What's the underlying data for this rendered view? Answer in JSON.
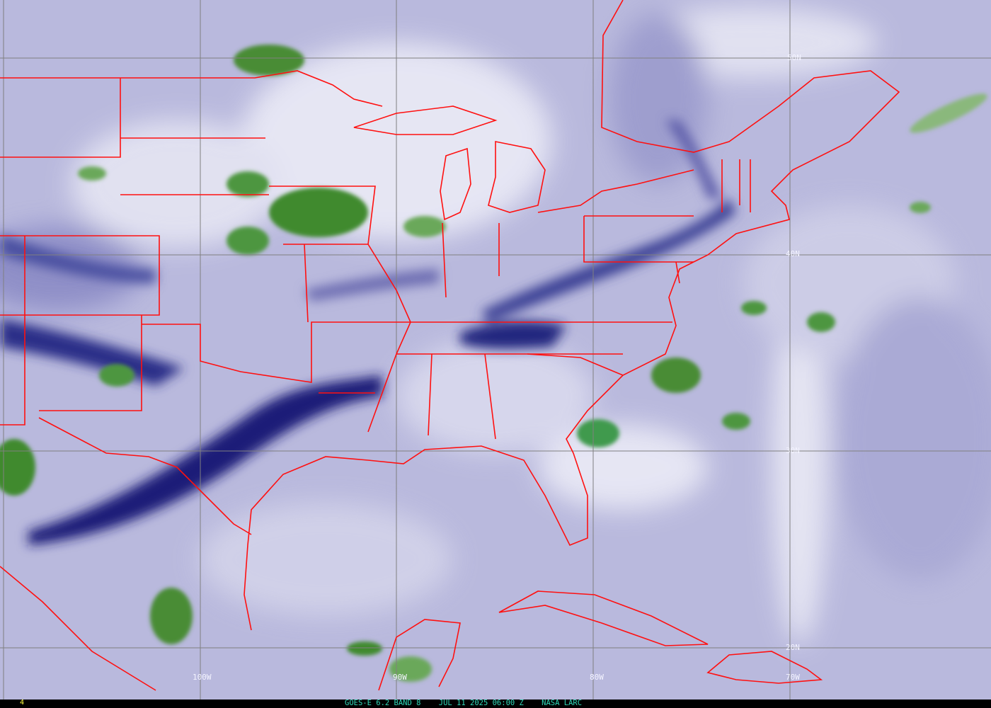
{
  "image": {
    "satellite": "GOES-E",
    "channel": "6.2",
    "band": "BAND 8",
    "date": "JUL 11 2025",
    "time": "06:00 Z",
    "source": "NASA LARC",
    "caption": "GOES-E 6.2 BAND 8    JUL 11 2025 06:00 Z    NASA LARC",
    "frame_number": "4"
  },
  "grid": {
    "longitude_labels": [
      "100W",
      "90W",
      "80W",
      "70W"
    ],
    "latitude_labels": [
      "50N",
      "40N",
      "30N",
      "20N"
    ]
  },
  "colors": {
    "background": "#b9b9dd",
    "moist_dark": "#1a1f78",
    "dry_white": "#f2f2fa",
    "cloud_green": "#3f8a2e",
    "boundaries": "#ff1010",
    "grid": "#808080",
    "caption": "#30d8b8",
    "frame_number": "#ffff40"
  }
}
